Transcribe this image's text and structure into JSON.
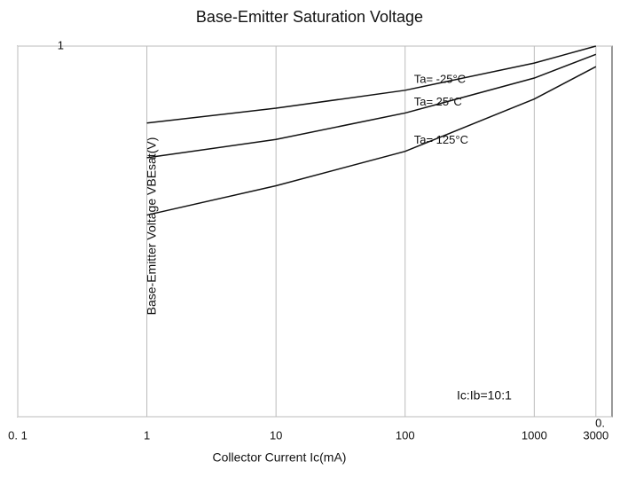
{
  "chart_data": {
    "type": "line",
    "title": "Base-Emitter Saturation Voltage",
    "x_label": "Collector Current   Ic(mA)",
    "y_label": "Base-Emitter Voltage   VBEsat(V)",
    "annotation": "Ic:Ib=10:1",
    "x_log": true,
    "y_log": true,
    "xlim": [
      0.1,
      4000
    ],
    "ylim": [
      0.1,
      1
    ],
    "xticks": [
      {
        "value": 0.1,
        "label": "0. 1"
      },
      1,
      10,
      100,
      1000,
      3000
    ],
    "yticks": [
      {
        "value": 0.1,
        "label": "0."
      },
      1
    ],
    "x": [
      1,
      10,
      100,
      1000,
      3000
    ],
    "series": [
      {
        "name": "Ta= -25°C",
        "color": "#111111",
        "values": [
          0.62,
          0.68,
          0.76,
          0.9,
          1.0
        ]
      },
      {
        "name": "Ta= 25°C",
        "color": "#111111",
        "values": [
          0.5,
          0.56,
          0.66,
          0.82,
          0.95
        ]
      },
      {
        "name": "Ta= 125°C",
        "color": "#111111",
        "values": [
          0.35,
          0.42,
          0.52,
          0.72,
          0.88
        ]
      }
    ]
  }
}
